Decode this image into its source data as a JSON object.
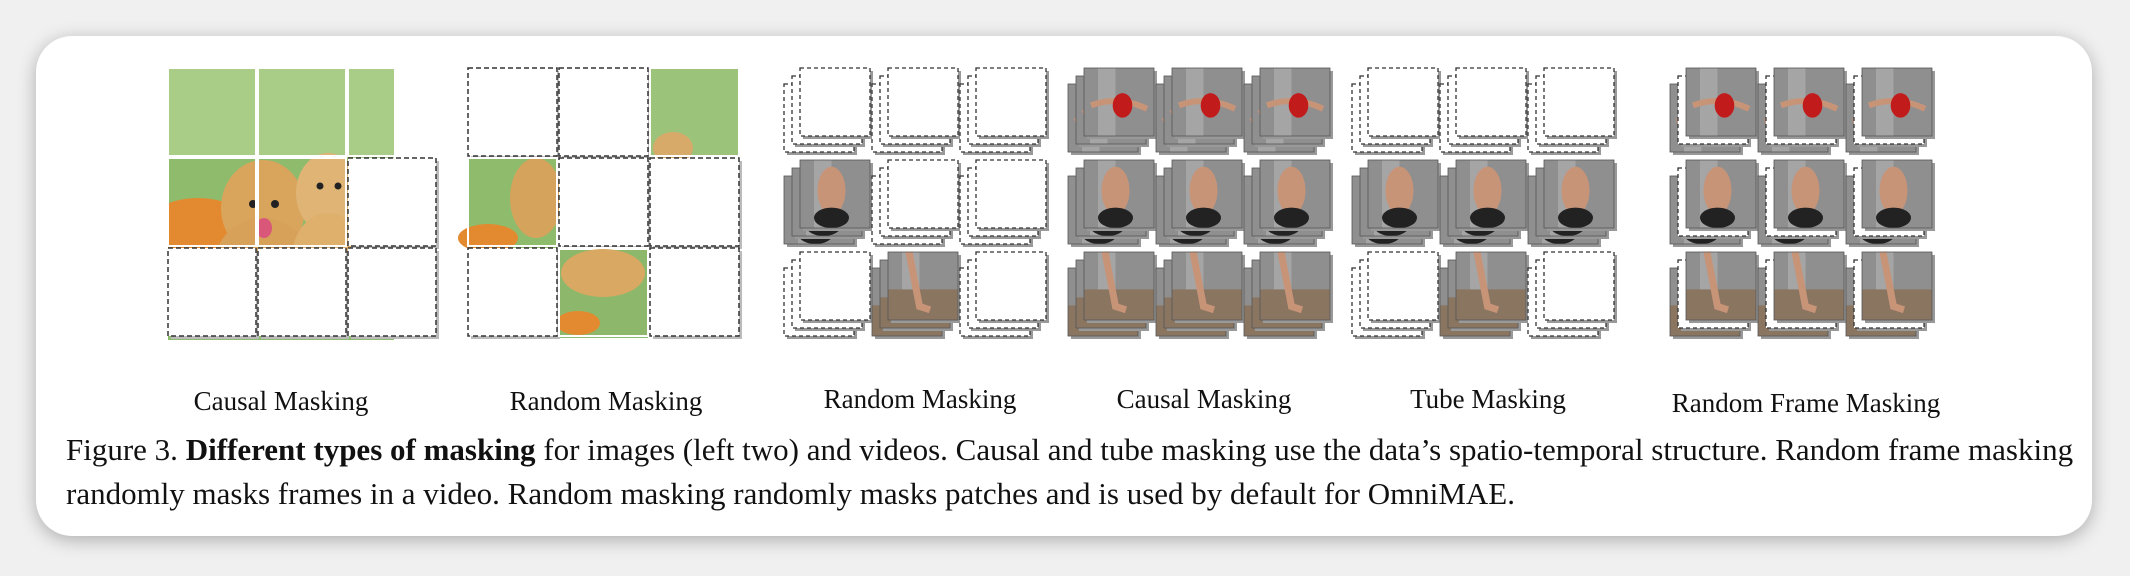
{
  "figure": {
    "panels": [
      {
        "id": "image-causal",
        "label": "Causal Masking",
        "kind": "image",
        "pattern": [
          [
            1,
            1,
            1
          ],
          [
            1,
            1,
            0
          ],
          [
            0,
            0,
            0
          ]
        ]
      },
      {
        "id": "image-random",
        "label": "Random Masking",
        "kind": "image",
        "pattern": [
          [
            0,
            0,
            1
          ],
          [
            1,
            0,
            0
          ],
          [
            0,
            1,
            0
          ]
        ]
      },
      {
        "id": "video-random",
        "label": "Random Masking",
        "kind": "video",
        "pattern": [
          [
            0,
            0,
            0
          ],
          [
            1,
            0,
            0
          ],
          [
            0,
            1,
            0
          ]
        ]
      },
      {
        "id": "video-causal",
        "label": "Causal Masking",
        "kind": "video",
        "pattern": [
          [
            1,
            1,
            1
          ],
          [
            1,
            1,
            1
          ],
          [
            1,
            1,
            1
          ]
        ]
      },
      {
        "id": "video-tube",
        "label": "Tube Masking",
        "kind": "video",
        "pattern": [
          [
            0,
            0,
            0
          ],
          [
            1,
            1,
            1
          ],
          [
            0,
            1,
            0
          ]
        ]
      },
      {
        "id": "video-random-frame",
        "label": "Random Frame Masking",
        "kind": "video",
        "pattern": [
          [
            1,
            1,
            1
          ],
          [
            1,
            1,
            1
          ],
          [
            1,
            1,
            1
          ]
        ]
      }
    ]
  },
  "caption": {
    "prefix": "Figure 3. ",
    "bold": "Different types of masking",
    "rest": " for images (left two) and videos. Causal and tube masking use the data’s spatio-temporal structure. Random frame masking randomly masks frames in a video. Random masking randomly masks patches and is used by default for OmniMAE."
  },
  "colors": {
    "grass": "#86b466",
    "grass_light": "#a8cf86",
    "flowers": "#e4872c",
    "dog_fur": "#d8a760",
    "wall": "#8f8f8f",
    "floor": "#8a7560",
    "dress": "#c21b1b",
    "skin": "#c89478"
  }
}
